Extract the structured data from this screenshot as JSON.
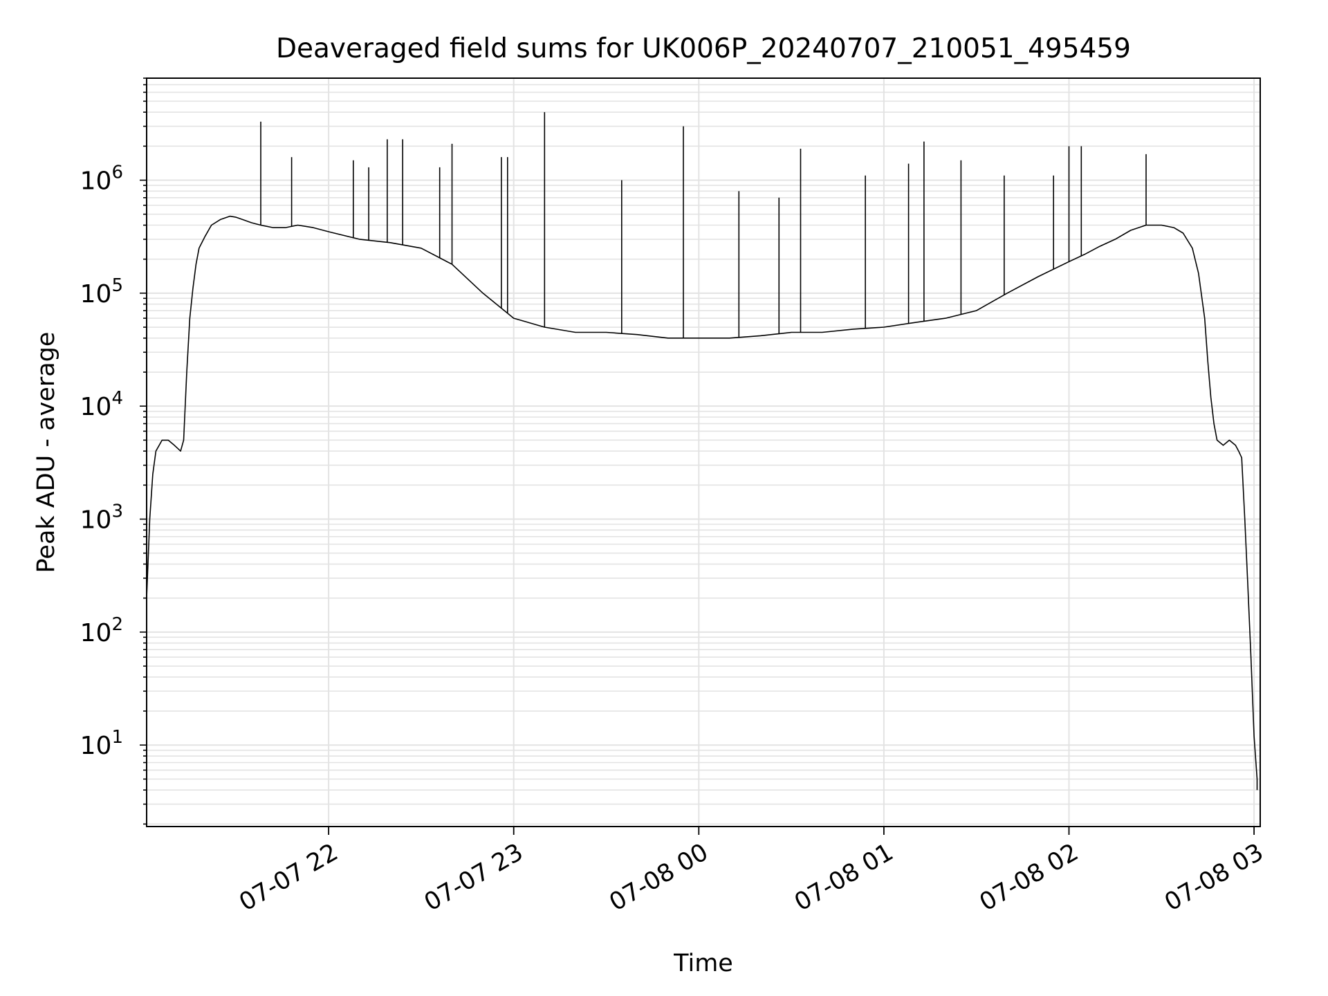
{
  "chart_data": {
    "type": "line",
    "title": "Deaveraged field sums for UK006P_20240707_210051_495459",
    "xlabel": "Time",
    "ylabel": "Peak ADU - average",
    "yscale": "log",
    "grid": true,
    "legend": "none",
    "xlim": [
      "2024-07-07 21:01",
      "2024-07-08 03:02"
    ],
    "ylim": [
      1.9,
      8000000
    ],
    "x_ticks": [
      {
        "t": "2024-07-07 22:00",
        "label": "07-07 22"
      },
      {
        "t": "2024-07-07 23:00",
        "label": "07-07 23"
      },
      {
        "t": "2024-07-08 00:00",
        "label": "07-08 00"
      },
      {
        "t": "2024-07-08 01:00",
        "label": "07-08 01"
      },
      {
        "t": "2024-07-08 02:00",
        "label": "07-08 02"
      },
      {
        "t": "2024-07-08 03:00",
        "label": "07-08 03"
      }
    ],
    "y_ticks": [
      {
        "value": 10,
        "base": "10",
        "exp": "1"
      },
      {
        "value": 100,
        "base": "10",
        "exp": "2"
      },
      {
        "value": 1000,
        "base": "10",
        "exp": "3"
      },
      {
        "value": 10000,
        "base": "10",
        "exp": "4"
      },
      {
        "value": 100000,
        "base": "10",
        "exp": "5"
      },
      {
        "value": 1000000,
        "base": "10",
        "exp": "6"
      }
    ],
    "series_color": "#000000",
    "series": [
      {
        "x": [
          "2024-07-07 21:01",
          "2024-07-07 21:02",
          "2024-07-07 21:03",
          "2024-07-07 21:04",
          "2024-07-07 21:06",
          "2024-07-07 21:08",
          "2024-07-07 21:10",
          "2024-07-07 21:12",
          "2024-07-07 21:13",
          "2024-07-07 21:14",
          "2024-07-07 21:15",
          "2024-07-07 21:16",
          "2024-07-07 21:17",
          "2024-07-07 21:18",
          "2024-07-07 21:20",
          "2024-07-07 21:22",
          "2024-07-07 21:25",
          "2024-07-07 21:28",
          "2024-07-07 21:30",
          "2024-07-07 21:32",
          "2024-07-07 21:35",
          "2024-07-07 21:38",
          "2024-07-07 21:42",
          "2024-07-07 21:46",
          "2024-07-07 21:50",
          "2024-07-07 21:55",
          "2024-07-07 22:00",
          "2024-07-07 22:10",
          "2024-07-07 22:20",
          "2024-07-07 22:30",
          "2024-07-07 22:40",
          "2024-07-07 22:50",
          "2024-07-07 23:00",
          "2024-07-07 23:10",
          "2024-07-07 23:20",
          "2024-07-07 23:30",
          "2024-07-07 23:40",
          "2024-07-07 23:50",
          "2024-07-08 00:00",
          "2024-07-08 00:10",
          "2024-07-08 00:20",
          "2024-07-08 00:30",
          "2024-07-08 00:40",
          "2024-07-08 00:50",
          "2024-07-08 01:00",
          "2024-07-08 01:10",
          "2024-07-08 01:20",
          "2024-07-08 01:30",
          "2024-07-08 01:40",
          "2024-07-08 01:50",
          "2024-07-08 02:00",
          "2024-07-08 02:05",
          "2024-07-08 02:10",
          "2024-07-08 02:15",
          "2024-07-08 02:20",
          "2024-07-08 02:25",
          "2024-07-08 02:30",
          "2024-07-08 02:34",
          "2024-07-08 02:37",
          "2024-07-08 02:40",
          "2024-07-08 02:42",
          "2024-07-08 02:44",
          "2024-07-08 02:45",
          "2024-07-08 02:46",
          "2024-07-08 02:47",
          "2024-07-08 02:48",
          "2024-07-08 02:50",
          "2024-07-08 02:52",
          "2024-07-08 02:54",
          "2024-07-08 02:55",
          "2024-07-08 02:56",
          "2024-07-08 02:57",
          "2024-07-08 02:58",
          "2024-07-08 02:59",
          "2024-07-08 03:00",
          "2024-07-08 03:01",
          "2024-07-08 03:01"
        ],
        "y": [
          200,
          1000,
          2500,
          4000,
          5000,
          5000,
          4500,
          4000,
          5000,
          20000,
          60000,
          110000,
          180000,
          250000,
          320000,
          400000,
          450000,
          480000,
          470000,
          450000,
          420000,
          400000,
          380000,
          380000,
          400000,
          380000,
          350000,
          300000,
          280000,
          250000,
          180000,
          100000,
          60000,
          50000,
          45000,
          45000,
          43000,
          40000,
          40000,
          40000,
          42000,
          45000,
          45000,
          48000,
          50000,
          55000,
          60000,
          70000,
          100000,
          140000,
          190000,
          220000,
          260000,
          300000,
          360000,
          400000,
          400000,
          380000,
          340000,
          250000,
          150000,
          60000,
          25000,
          12000,
          7000,
          5000,
          4500,
          5000,
          4500,
          4000,
          3500,
          1000,
          250,
          60,
          12,
          5,
          4
        ]
      }
    ],
    "spikes": [
      {
        "x": "2024-07-07 21:38",
        "y": 3300000
      },
      {
        "x": "2024-07-07 21:48",
        "y": 1600000
      },
      {
        "x": "2024-07-07 22:08",
        "y": 1500000
      },
      {
        "x": "2024-07-07 22:13",
        "y": 1300000
      },
      {
        "x": "2024-07-07 22:19",
        "y": 2300000
      },
      {
        "x": "2024-07-07 22:24",
        "y": 2300000
      },
      {
        "x": "2024-07-07 22:36",
        "y": 1300000
      },
      {
        "x": "2024-07-07 22:40",
        "y": 2100000
      },
      {
        "x": "2024-07-07 22:56",
        "y": 1600000
      },
      {
        "x": "2024-07-07 22:58",
        "y": 1600000
      },
      {
        "x": "2024-07-07 23:10",
        "y": 4000000
      },
      {
        "x": "2024-07-07 23:35",
        "y": 1000000
      },
      {
        "x": "2024-07-07 23:55",
        "y": 3000000
      },
      {
        "x": "2024-07-08 00:13",
        "y": 800000
      },
      {
        "x": "2024-07-08 00:26",
        "y": 700000
      },
      {
        "x": "2024-07-08 00:33",
        "y": 1900000
      },
      {
        "x": "2024-07-08 00:54",
        "y": 1100000
      },
      {
        "x": "2024-07-08 01:08",
        "y": 1400000
      },
      {
        "x": "2024-07-08 01:13",
        "y": 2200000
      },
      {
        "x": "2024-07-08 01:25",
        "y": 1500000
      },
      {
        "x": "2024-07-08 01:39",
        "y": 1100000
      },
      {
        "x": "2024-07-08 01:55",
        "y": 1100000
      },
      {
        "x": "2024-07-08 02:00",
        "y": 2000000
      },
      {
        "x": "2024-07-08 02:04",
        "y": 2000000
      },
      {
        "x": "2024-07-08 02:25",
        "y": 1700000
      }
    ]
  }
}
